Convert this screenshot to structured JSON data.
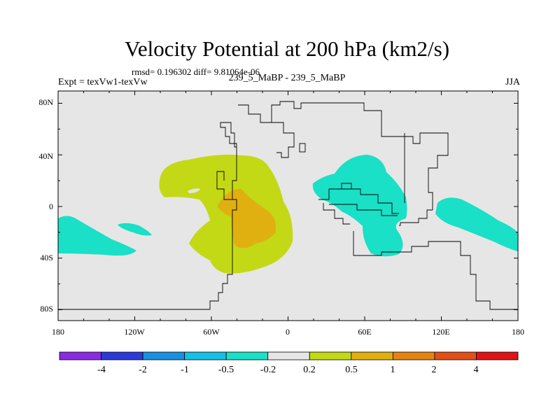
{
  "header": {
    "title": "Velocity Potential at 200 hPa (km2/s)",
    "stats": "rmsd= 0.196302 diff= 9.81064e-06",
    "expt": "Expt = texVw1-texVw",
    "center": "239_5_MaBP - 239_5_MaBP",
    "season": "JJA"
  },
  "axes": {
    "lat_labels": [
      "80N",
      "40N",
      "0",
      "40S",
      "80S"
    ],
    "lon_labels": [
      "180",
      "120W",
      "60W",
      "0",
      "60E",
      "120E",
      "180"
    ]
  },
  "colorbar": {
    "colors": [
      "#8a2be2",
      "#2b3ad9",
      "#1a8fe0",
      "#16bfe3",
      "#19e0c6",
      "#e6e6e6",
      "#c3d916",
      "#e0b010",
      "#e38412",
      "#e0501a",
      "#e01414"
    ],
    "labels": [
      "-4",
      "-2",
      "-1",
      "-0.5",
      "-0.2",
      "0.2",
      "0.5",
      "1",
      "2",
      "4"
    ]
  },
  "map": {
    "background": "#e6e6e6",
    "regions": [
      {
        "name": "positive-anomaly-outer",
        "level": "0.2 to 0.5",
        "color": "#c3d916"
      },
      {
        "name": "positive-anomaly-core",
        "level": "0.5 to 1",
        "color": "#e0b010"
      },
      {
        "name": "negative-anomaly-eastern",
        "level": "-0.5 to -0.2",
        "color": "#19e0c6"
      },
      {
        "name": "negative-anomaly-pacific-east",
        "level": "-0.5 to -0.2",
        "color": "#19e0c6"
      },
      {
        "name": "negative-anomaly-west-edge",
        "level": "-0.5 to -0.2",
        "color": "#19e0c6"
      },
      {
        "name": "negative-anomaly-streak",
        "level": "-0.5 to -0.2",
        "color": "#19e0c6"
      }
    ]
  }
}
